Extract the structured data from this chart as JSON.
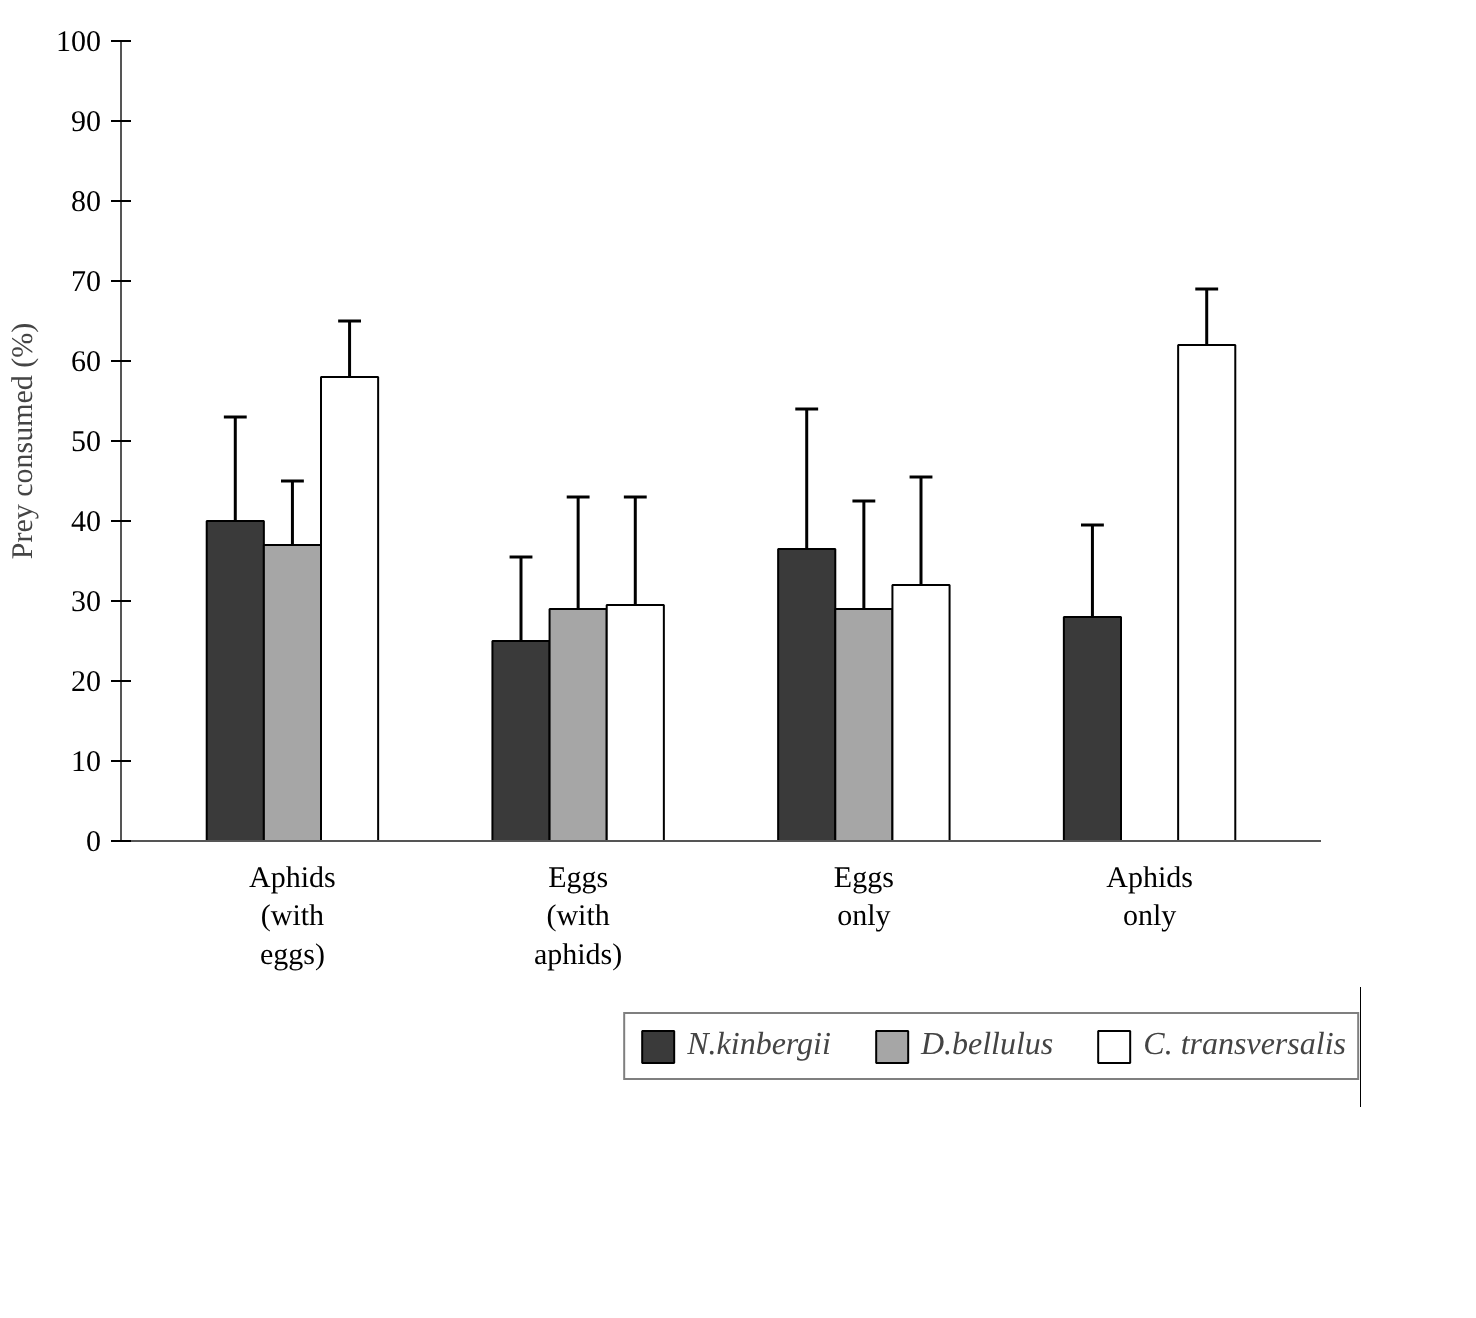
{
  "chart_data": {
    "type": "bar",
    "ylabel": "Prey consumed (%)",
    "categories": [
      "Aphids\n(with\neggs)",
      "Eggs\n(with\naphids)",
      "Eggs\nonly",
      "Aphids\nonly"
    ],
    "series": [
      {
        "name": "N.kinbergii",
        "color": "#3a3a3a",
        "values": [
          40,
          25,
          36.5,
          28
        ],
        "errors": [
          [
            40,
            53
          ],
          [
            25,
            35.5
          ],
          [
            36.5,
            54
          ],
          [
            28,
            39.5
          ]
        ]
      },
      {
        "name": "D.bellulus",
        "color": "#a6a6a6",
        "values": [
          37,
          29,
          29,
          null
        ],
        "errors": [
          [
            37,
            45
          ],
          [
            29,
            43
          ],
          [
            29,
            42.5
          ],
          null
        ]
      },
      {
        "name": "C. transversalis",
        "color": "#ffffff",
        "values": [
          58,
          29.5,
          32,
          62
        ],
        "errors": [
          [
            58,
            65
          ],
          [
            29.5,
            43
          ],
          [
            32,
            45.5
          ],
          [
            62,
            69
          ]
        ]
      }
    ],
    "ylim": [
      0,
      100
    ],
    "yticks": [
      0,
      10,
      20,
      30,
      40,
      50,
      60,
      70,
      80,
      90,
      100
    ],
    "grid": false,
    "legend": "bottom"
  }
}
